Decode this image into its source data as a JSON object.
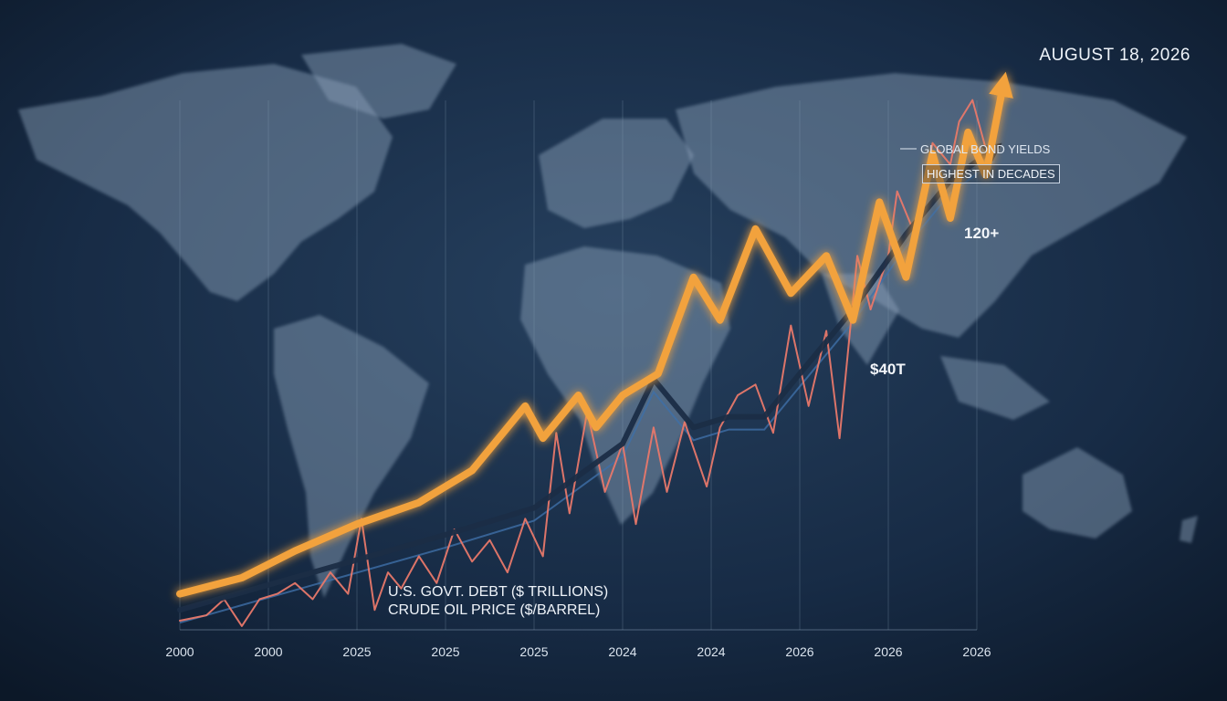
{
  "header": {
    "date": "AUGUST 18, 2026"
  },
  "colors": {
    "background": "#13233a",
    "bond_yields": "#f2a23c",
    "us_debt": "#1b2d46",
    "oil": "#e8786a",
    "grid": "#8aa0b8"
  },
  "chart_data": {
    "type": "line",
    "title": "",
    "xlabel": "",
    "ylabel": "",
    "x_ticks": [
      "2000",
      "2000",
      "2025",
      "2025",
      "2025",
      "2024",
      "2024",
      "2026",
      "2026",
      "2026"
    ],
    "grid": true,
    "legend_position": "bottom-center",
    "ylim": [
      0,
      100
    ],
    "annotations": {
      "bond_title": "GLOBAL BOND YIELDS",
      "bond_badge": "HIGHEST IN DECADES",
      "oil_peak": "120+",
      "debt_peak": "$40T"
    },
    "legend": [
      "U.S. GOVT. DEBT ($ TRILLIONS)",
      "CRUDE OIL PRICE ($/BARREL)"
    ],
    "series": [
      {
        "name": "GLOBAL BOND YIELDS",
        "color": "#f2a23c",
        "x": [
          0,
          0.7,
          1.3,
          2.0,
          2.7,
          3.3,
          3.9,
          4.1,
          4.5,
          4.7,
          5.0,
          5.4,
          5.8,
          6.1,
          6.5,
          6.9,
          7.3,
          7.6,
          7.9,
          8.2,
          8.5,
          8.7,
          8.9,
          9.1,
          9.3
        ],
        "values": [
          5,
          8,
          13,
          18,
          22,
          28,
          40,
          34,
          42,
          36,
          42,
          46,
          64,
          56,
          73,
          61,
          68,
          56,
          78,
          64,
          87,
          75,
          91,
          83,
          100
        ]
      },
      {
        "name": "U.S. GOVT. DEBT ($ TRILLIONS)",
        "color": "#1b2d46",
        "x": [
          0,
          1.5,
          3.0,
          4.0,
          5.0,
          5.35,
          5.8,
          6.2,
          6.6,
          7.0,
          7.6,
          8.2,
          8.7,
          9.2
        ],
        "values": [
          2,
          9,
          16,
          21,
          33,
          45,
          36,
          38,
          38,
          46,
          58,
          72,
          82,
          88
        ]
      },
      {
        "name": "CRUDE OIL PRICE ($/BARREL)",
        "color": "#e8786a",
        "x": [
          0,
          0.3,
          0.5,
          0.7,
          0.9,
          1.1,
          1.3,
          1.5,
          1.7,
          1.9,
          2.05,
          2.2,
          2.35,
          2.5,
          2.7,
          2.9,
          3.1,
          3.3,
          3.5,
          3.7,
          3.9,
          4.1,
          4.25,
          4.4,
          4.6,
          4.8,
          5.0,
          5.15,
          5.35,
          5.5,
          5.7,
          5.95,
          6.1,
          6.3,
          6.5,
          6.7,
          6.9,
          7.1,
          7.3,
          7.45,
          7.65,
          7.8,
          8.0,
          8.1,
          8.3,
          8.5,
          8.7,
          8.8,
          8.95,
          9.1
        ],
        "values": [
          0,
          1,
          4,
          -1,
          4,
          5,
          7,
          4,
          9,
          5,
          19,
          2,
          9,
          6,
          12,
          7,
          17,
          11,
          15,
          9,
          19,
          12,
          35,
          20,
          39,
          24,
          33,
          18,
          36,
          24,
          37,
          25,
          36,
          42,
          44,
          35,
          55,
          40,
          54,
          34,
          68,
          58,
          68,
          80,
          72,
          89,
          85,
          93,
          97,
          88
        ]
      }
    ]
  }
}
